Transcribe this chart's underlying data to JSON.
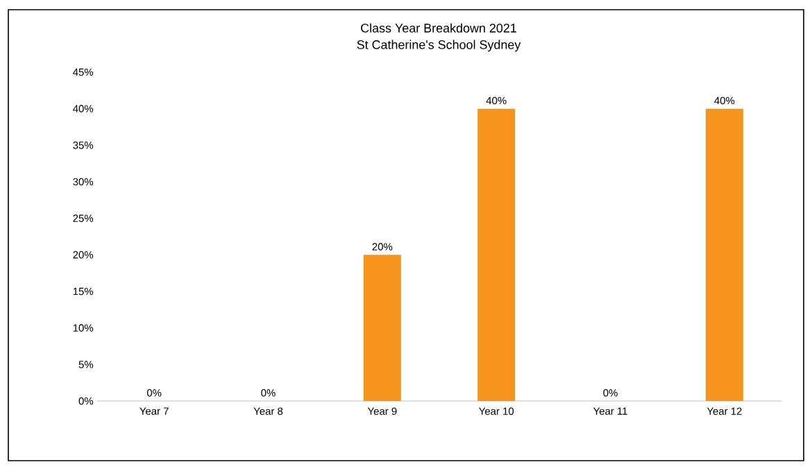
{
  "chart_data": {
    "type": "bar",
    "title": "Class Year Breakdown 2021",
    "subtitle": "St Catherine's School Sydney",
    "categories": [
      "Year 7",
      "Year 8",
      "Year 9",
      "Year 10",
      "Year 11",
      "Year 12"
    ],
    "values": [
      0,
      0,
      20,
      40,
      0,
      40
    ],
    "value_labels": [
      "0%",
      "0%",
      "20%",
      "40%",
      "0%",
      "40%"
    ],
    "color": "#f7941d",
    "ylim": [
      0,
      45
    ],
    "yticks": [
      {
        "value": 0,
        "label": "0%"
      },
      {
        "value": 5,
        "label": "5%"
      },
      {
        "value": 10,
        "label": "10%"
      },
      {
        "value": 15,
        "label": "15%"
      },
      {
        "value": 20,
        "label": "20%"
      },
      {
        "value": 25,
        "label": "25%"
      },
      {
        "value": 30,
        "label": "30%"
      },
      {
        "value": 35,
        "label": "35%"
      },
      {
        "value": 40,
        "label": "40%"
      },
      {
        "value": 45,
        "label": "45%"
      }
    ]
  }
}
